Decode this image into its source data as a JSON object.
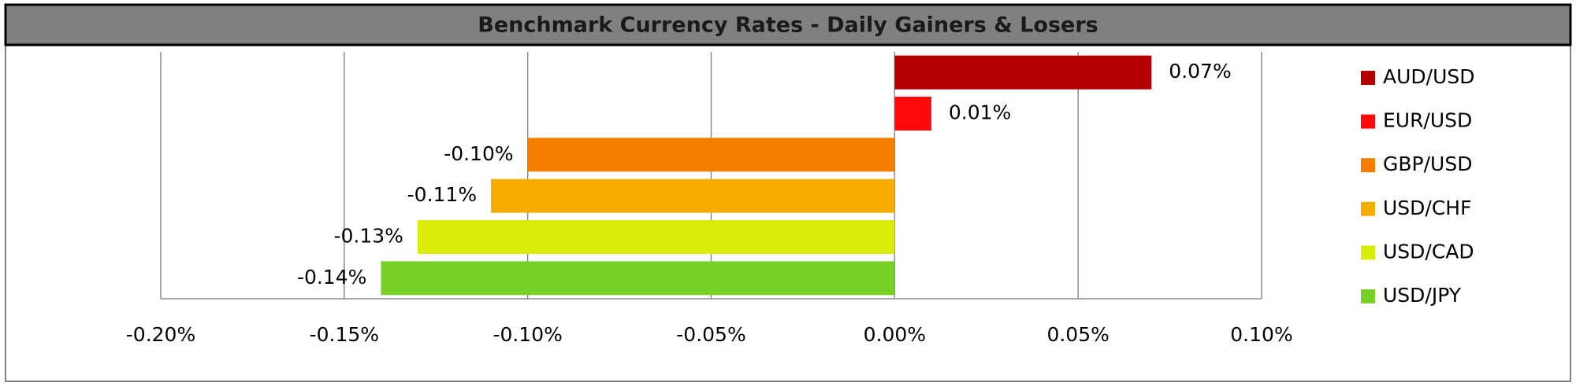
{
  "chart_data": {
    "type": "barh",
    "title": "Benchmark Currency Rates - Daily Gainers & Losers",
    "categories": [
      "AUD/USD",
      "EUR/USD",
      "GBP/USD",
      "USD/CHF",
      "USD/CAD",
      "USD/JPY"
    ],
    "values": [
      0.07,
      0.01,
      -0.1,
      -0.11,
      -0.13,
      -0.14
    ],
    "value_labels": [
      "0.07%",
      "0.01%",
      "-0.10%",
      "-0.11%",
      "-0.13%",
      "-0.14%"
    ],
    "colors": [
      "#b30000",
      "#ff0a0a",
      "#f77f00",
      "#f7ad00",
      "#d9ec0a",
      "#78d126"
    ],
    "xlim": [
      -0.2,
      0.1
    ],
    "xticks": [
      {
        "value": -0.2,
        "label": "-0.20%"
      },
      {
        "value": -0.15,
        "label": "-0.15%"
      },
      {
        "value": -0.1,
        "label": "-0.10%"
      },
      {
        "value": -0.05,
        "label": "-0.05%"
      },
      {
        "value": 0,
        "label": "0.00%"
      },
      {
        "value": 0.05,
        "label": "0.05%"
      },
      {
        "value": 0.1,
        "label": "0.10%"
      }
    ],
    "grid": true,
    "legend": "right"
  }
}
